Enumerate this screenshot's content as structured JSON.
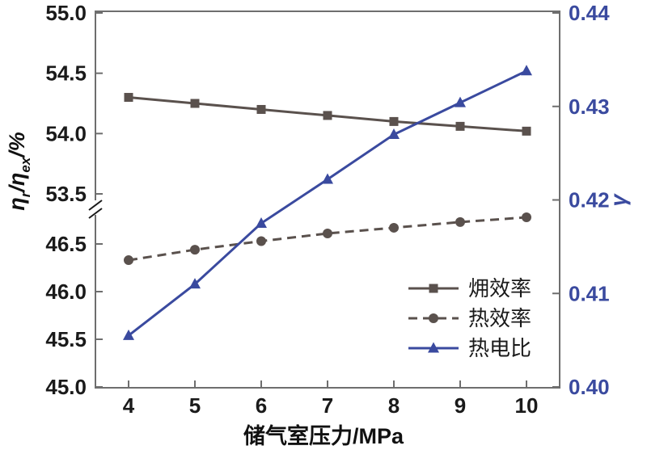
{
  "chart_data": {
    "type": "line",
    "xlabel": "储气室压力/MPa",
    "ylabel_left": {
      "p1": "η",
      "s1": "r",
      "p2": "/η",
      "s2": "ex",
      "p3": "/%"
    },
    "ylabel_right": "γ",
    "x": [
      4,
      5,
      6,
      7,
      8,
      9,
      10
    ],
    "x_ticks": [
      "4",
      "5",
      "6",
      "7",
      "8",
      "9",
      "10"
    ],
    "left_axis": {
      "broken": true,
      "upper_ticks": [
        "55.0",
        "54.5",
        "54.0",
        "53.5"
      ],
      "lower_ticks": [
        "46.5",
        "46.0",
        "45.5",
        "45.0"
      ],
      "upper_range": [
        53.5,
        55.0
      ],
      "lower_range": [
        45.0,
        46.5
      ]
    },
    "right_axis": {
      "ticks": [
        "0.44",
        "0.43",
        "0.42",
        "0.41",
        "0.40"
      ],
      "range": [
        0.4,
        0.44
      ]
    },
    "series": [
      {
        "key": "exergy-efficiency",
        "name": "㶲效率",
        "axis": "left",
        "marker": "square",
        "line": "solid",
        "color": "#5a514d",
        "values": [
          54.3,
          54.25,
          54.2,
          54.15,
          54.1,
          54.06,
          54.02
        ]
      },
      {
        "key": "thermal-efficiency",
        "name": "热效率",
        "axis": "left",
        "marker": "circle",
        "line": "dashed",
        "color": "#5a514d",
        "values": [
          46.33,
          46.44,
          46.53,
          46.61,
          46.67,
          46.73,
          46.78
        ]
      },
      {
        "key": "heat-to-power-ratio",
        "name": "热电比",
        "axis": "right",
        "marker": "triangle",
        "line": "solid",
        "color": "#3a4a9f",
        "values": [
          0.4055,
          0.411,
          0.4175,
          0.4222,
          0.427,
          0.4304,
          0.4338
        ]
      }
    ],
    "legend": {
      "position": "lower-right",
      "entries": [
        "㶲效率",
        "热效率",
        "热电比"
      ]
    },
    "colors": {
      "axis_frame": "#6e6e6e",
      "left_text": "#1a1a1a",
      "right_text": "#3a4a9f",
      "background": "#ffffff"
    }
  }
}
